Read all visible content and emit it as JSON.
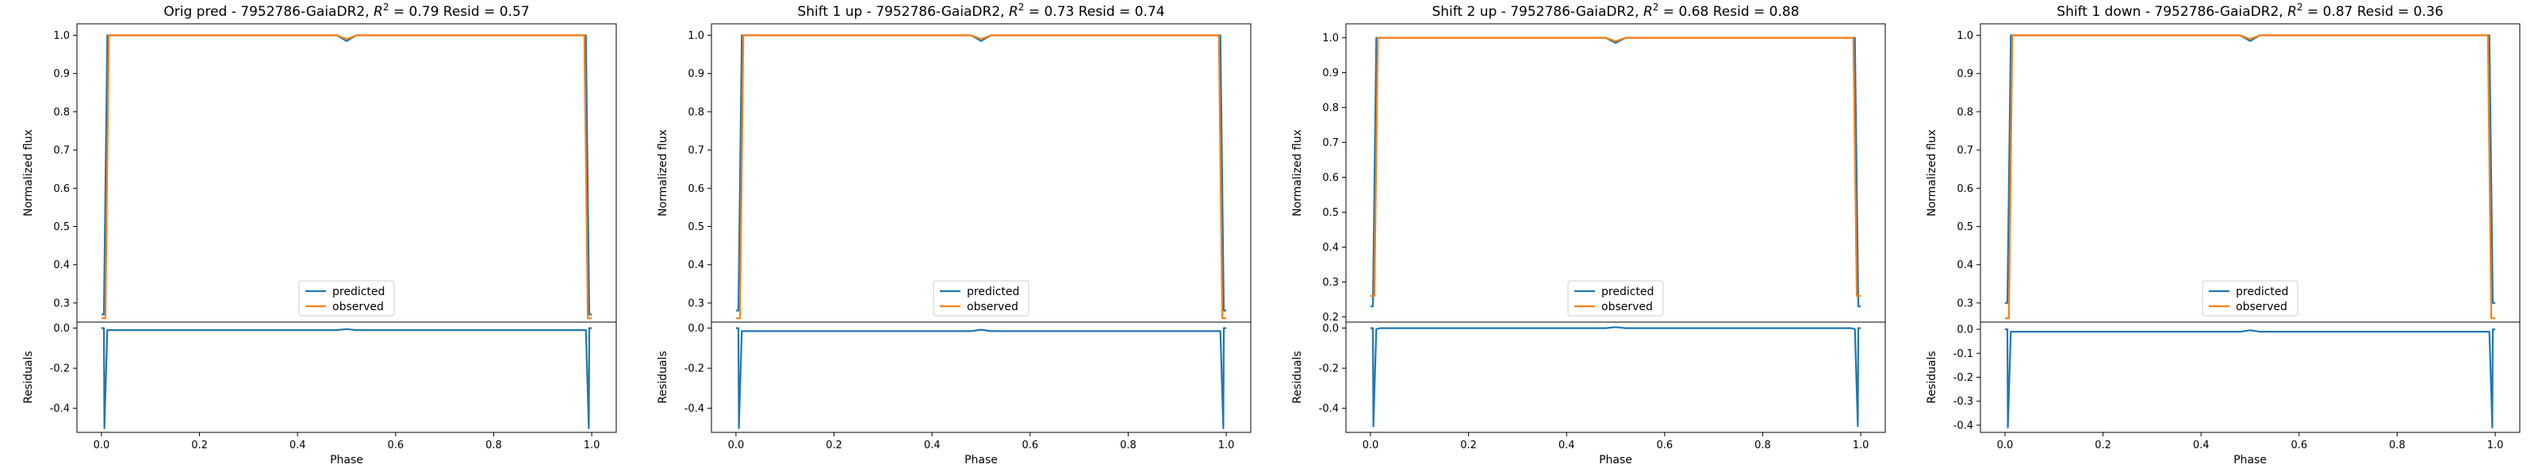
{
  "chart_data": [
    {
      "type": "line",
      "title_prefix": "Orig pred - 7952786-GaiaDR2, ",
      "title_r2": "0.79",
      "title_resid": "0.57",
      "xlabel": "Phase",
      "ylabel": "Normalized flux",
      "resid_ylabel": "Residuals",
      "xlim": [
        -0.05,
        1.05
      ],
      "ylim": [
        0.25,
        1.03
      ],
      "yticks": [
        0.3,
        0.4,
        0.5,
        0.6,
        0.7,
        0.8,
        0.9,
        1.0
      ],
      "resid_ylim": [
        -0.52,
        0.03
      ],
      "resid_yticks": [
        0.0,
        -0.2,
        -0.4
      ],
      "xticks": [
        0.0,
        0.2,
        0.4,
        0.6,
        0.8,
        1.0
      ],
      "legend_position": "lower center",
      "series": [
        {
          "name": "predicted",
          "color": "#1f77b4",
          "x": [
            0.0,
            0.005,
            0.012,
            0.02,
            0.48,
            0.5,
            0.52,
            0.98,
            0.988,
            0.995,
            1.0
          ],
          "y": [
            0.27,
            0.27,
            1.0,
            1.0,
            1.0,
            0.985,
            1.0,
            1.0,
            1.0,
            0.27,
            0.27
          ]
        },
        {
          "name": "observed",
          "color": "#ff7f0e",
          "x": [
            0.0,
            0.008,
            0.015,
            0.02,
            0.48,
            0.5,
            0.52,
            0.98,
            0.985,
            0.992,
            1.0
          ],
          "y": [
            0.26,
            0.26,
            1.0,
            1.0,
            1.0,
            0.99,
            1.0,
            1.0,
            1.0,
            0.26,
            0.26
          ]
        }
      ],
      "residuals": {
        "color": "#1f77b4",
        "x": [
          0.0,
          0.005,
          0.006,
          0.012,
          0.02,
          0.48,
          0.5,
          0.52,
          0.98,
          0.988,
          0.994,
          0.995,
          1.0
        ],
        "y": [
          0.0,
          0.0,
          -0.5,
          -0.01,
          -0.01,
          -0.01,
          -0.005,
          -0.01,
          -0.01,
          -0.01,
          -0.5,
          0.0,
          0.0
        ]
      }
    },
    {
      "type": "line",
      "title_prefix": "Shift 1 up - 7952786-GaiaDR2, ",
      "title_r2": "0.73",
      "title_resid": "0.74",
      "xlabel": "Phase",
      "ylabel": "Normalized flux",
      "resid_ylabel": "Residuals",
      "xlim": [
        -0.05,
        1.05
      ],
      "ylim": [
        0.25,
        1.03
      ],
      "yticks": [
        0.3,
        0.4,
        0.5,
        0.6,
        0.7,
        0.8,
        0.9,
        1.0
      ],
      "resid_ylim": [
        -0.52,
        0.03
      ],
      "resid_yticks": [
        0.0,
        -0.2,
        -0.4
      ],
      "xticks": [
        0.0,
        0.2,
        0.4,
        0.6,
        0.8,
        1.0
      ],
      "legend_position": "lower center",
      "series": [
        {
          "name": "predicted",
          "color": "#1f77b4",
          "x": [
            0.0,
            0.005,
            0.012,
            0.02,
            0.48,
            0.5,
            0.52,
            0.98,
            0.988,
            0.995,
            1.0
          ],
          "y": [
            0.28,
            0.28,
            1.0,
            1.0,
            1.0,
            0.985,
            1.0,
            1.0,
            1.0,
            0.28,
            0.28
          ]
        },
        {
          "name": "observed",
          "color": "#ff7f0e",
          "x": [
            0.0,
            0.008,
            0.015,
            0.02,
            0.48,
            0.5,
            0.52,
            0.98,
            0.985,
            0.992,
            1.0
          ],
          "y": [
            0.26,
            0.26,
            1.0,
            1.0,
            1.0,
            0.99,
            1.0,
            1.0,
            1.0,
            0.26,
            0.26
          ]
        }
      ],
      "residuals": {
        "color": "#1f77b4",
        "x": [
          0.0,
          0.005,
          0.006,
          0.012,
          0.02,
          0.48,
          0.5,
          0.52,
          0.98,
          0.988,
          0.994,
          0.995,
          1.0
        ],
        "y": [
          0.0,
          0.0,
          -0.5,
          -0.015,
          -0.015,
          -0.015,
          -0.008,
          -0.015,
          -0.015,
          -0.015,
          -0.5,
          0.0,
          0.0
        ]
      }
    },
    {
      "type": "line",
      "title_prefix": "Shift 2 up - 7952786-GaiaDR2, ",
      "title_r2": "0.68",
      "title_resid": "0.88",
      "xlabel": "Phase",
      "ylabel": "Normalized flux",
      "resid_ylabel": "Residuals",
      "xlim": [
        -0.05,
        1.05
      ],
      "ylim": [
        0.185,
        1.04
      ],
      "yticks": [
        0.2,
        0.3,
        0.4,
        0.5,
        0.6,
        0.7,
        0.8,
        0.9,
        1.0
      ],
      "resid_ylim": [
        -0.52,
        0.03
      ],
      "resid_yticks": [
        0.0,
        -0.2,
        -0.4
      ],
      "xticks": [
        0.0,
        0.2,
        0.4,
        0.6,
        0.8,
        1.0
      ],
      "legend_position": "lower center",
      "series": [
        {
          "name": "predicted",
          "color": "#1f77b4",
          "x": [
            0.0,
            0.005,
            0.012,
            0.02,
            0.48,
            0.5,
            0.52,
            0.98,
            0.988,
            0.995,
            1.0
          ],
          "y": [
            0.23,
            0.23,
            1.0,
            1.0,
            1.0,
            0.985,
            1.0,
            1.0,
            1.0,
            0.23,
            0.23
          ]
        },
        {
          "name": "observed",
          "color": "#ff7f0e",
          "x": [
            0.0,
            0.008,
            0.015,
            0.02,
            0.48,
            0.5,
            0.52,
            0.98,
            0.985,
            0.992,
            1.0
          ],
          "y": [
            0.26,
            0.26,
            1.0,
            1.0,
            1.0,
            0.99,
            1.0,
            1.0,
            1.0,
            0.26,
            0.26
          ]
        }
      ],
      "residuals": {
        "color": "#1f77b4",
        "x": [
          0.0,
          0.005,
          0.006,
          0.012,
          0.02,
          0.48,
          0.5,
          0.52,
          0.98,
          0.988,
          0.994,
          0.995,
          1.0
        ],
        "y": [
          0.0,
          0.0,
          -0.49,
          -0.005,
          0.0,
          0.0,
          0.005,
          0.0,
          0.0,
          -0.005,
          -0.49,
          0.0,
          0.0
        ]
      }
    },
    {
      "type": "line",
      "title_prefix": "Shift 1 down - 7952786-GaiaDR2, ",
      "title_r2": "0.87",
      "title_resid": "0.36",
      "xlabel": "Phase",
      "ylabel": "Normalized flux",
      "resid_ylabel": "Residuals",
      "xlim": [
        -0.05,
        1.05
      ],
      "ylim": [
        0.25,
        1.03
      ],
      "yticks": [
        0.3,
        0.4,
        0.5,
        0.6,
        0.7,
        0.8,
        0.9,
        1.0
      ],
      "resid_ylim": [
        -0.43,
        0.03
      ],
      "resid_yticks": [
        0.0,
        -0.1,
        -0.2,
        -0.3,
        -0.4
      ],
      "xticks": [
        0.0,
        0.2,
        0.4,
        0.6,
        0.8,
        1.0
      ],
      "legend_position": "lower center",
      "series": [
        {
          "name": "predicted",
          "color": "#1f77b4",
          "x": [
            0.0,
            0.005,
            0.012,
            0.02,
            0.48,
            0.5,
            0.52,
            0.98,
            0.988,
            0.995,
            1.0
          ],
          "y": [
            0.3,
            0.3,
            1.0,
            1.0,
            1.0,
            0.985,
            1.0,
            1.0,
            1.0,
            0.3,
            0.3
          ]
        },
        {
          "name": "observed",
          "color": "#ff7f0e",
          "x": [
            0.0,
            0.008,
            0.015,
            0.02,
            0.48,
            0.5,
            0.52,
            0.98,
            0.985,
            0.992,
            1.0
          ],
          "y": [
            0.26,
            0.26,
            1.0,
            1.0,
            1.0,
            0.99,
            1.0,
            1.0,
            1.0,
            0.26,
            0.26
          ]
        }
      ],
      "residuals": {
        "color": "#1f77b4",
        "x": [
          0.0,
          0.005,
          0.006,
          0.012,
          0.02,
          0.48,
          0.5,
          0.52,
          0.98,
          0.988,
          0.994,
          0.995,
          1.0
        ],
        "y": [
          0.0,
          0.0,
          -0.41,
          -0.01,
          -0.01,
          -0.01,
          -0.004,
          -0.01,
          -0.01,
          -0.01,
          -0.41,
          0.0,
          0.0
        ]
      }
    }
  ]
}
